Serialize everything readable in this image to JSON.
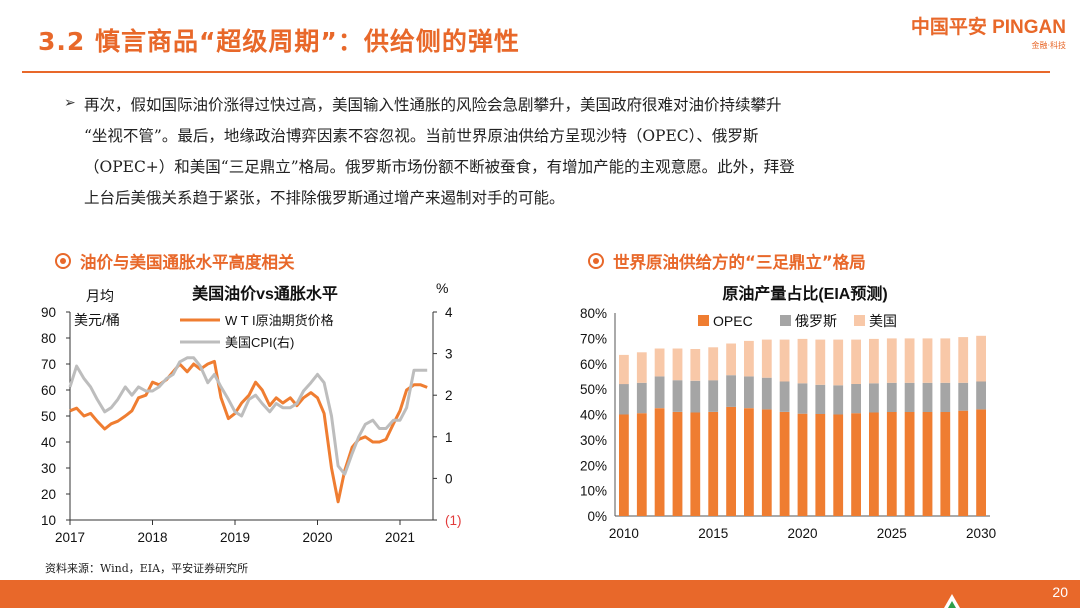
{
  "header": {
    "title": "3.2 慎言商品“超级周期”：供给侧的弹性",
    "logo_main": "中国平安 PINGAN",
    "logo_sub": "金融·科技"
  },
  "bullet": {
    "lines": [
      "再次，假如国际油价涨得过快过高，美国输入性通胀的风险会急剧攀升，美国政府很难对油价持续攀升",
      "“坐视不管”。最后，地缘政治博弈因素不容忽视。当前世界原油供给方呈现沙特（OPEC）、俄罗斯",
      "（OPEC+）和美国“三足鼎立”格局。俄罗斯市场份额不断被蚕食，有增加产能的主观意愿。此外，拜登",
      "上台后美俄关系趋于紧张，不排除俄罗斯通过增产来遏制对手的可能。"
    ]
  },
  "left_section": {
    "heading": "油价与美国通胀水平高度相关"
  },
  "right_section": {
    "heading": "世界原油供给方的“三足鼎立”格局"
  },
  "footer": {
    "source": "资料来源：Wind，EIA，平安证券研究所",
    "page": "20"
  },
  "colors": {
    "accent": "#e8682a",
    "opec": "#ef7d31",
    "russia": "#a5a5a5",
    "us": "#f8c8a8",
    "cpi": "#bdbdbd"
  },
  "chart_data": [
    {
      "type": "line",
      "title": "美国油价vs通胀水平",
      "ylabel_left_1": "月均",
      "ylabel_left_2": "美元/桶",
      "ylabel_right": "%",
      "x_ticks": [
        "2017",
        "2018",
        "2019",
        "2020",
        "2021"
      ],
      "y_left_ticks": [
        "90",
        "80",
        "70",
        "60",
        "50",
        "40",
        "30",
        "20",
        "10"
      ],
      "y_right_ticks": [
        "4",
        "3",
        "2",
        "1",
        "0",
        "(1)"
      ],
      "ylim_left": [
        10,
        90
      ],
      "ylim_right": [
        -1,
        4
      ],
      "xlim": [
        2017.0,
        2021.4
      ],
      "series": [
        {
          "name": "W T I原油期货价格",
          "axis": "left",
          "x": [
            2017.0,
            2017.08,
            2017.17,
            2017.25,
            2017.33,
            2017.42,
            2017.5,
            2017.58,
            2017.67,
            2017.75,
            2017.83,
            2017.92,
            2018.0,
            2018.08,
            2018.17,
            2018.25,
            2018.33,
            2018.42,
            2018.5,
            2018.58,
            2018.67,
            2018.75,
            2018.83,
            2018.92,
            2019.0,
            2019.08,
            2019.17,
            2019.25,
            2019.33,
            2019.42,
            2019.5,
            2019.58,
            2019.67,
            2019.75,
            2019.83,
            2019.92,
            2020.0,
            2020.08,
            2020.17,
            2020.25,
            2020.33,
            2020.42,
            2020.5,
            2020.58,
            2020.67,
            2020.75,
            2020.83,
            2020.92,
            2021.0,
            2021.08,
            2021.17,
            2021.25,
            2021.33
          ],
          "values": [
            52,
            53,
            50,
            51,
            48,
            45,
            47,
            48,
            50,
            52,
            57,
            58,
            63,
            62,
            64,
            67,
            70,
            67,
            70,
            68,
            70,
            71,
            57,
            49,
            51,
            55,
            58,
            63,
            60,
            54,
            57,
            55,
            57,
            54,
            57,
            59,
            57,
            51,
            30,
            17,
            29,
            38,
            41,
            42,
            40,
            40,
            41,
            47,
            52,
            60,
            62,
            62,
            61
          ]
        },
        {
          "name": "美国CPI(右)",
          "axis": "right",
          "x": [
            2017.0,
            2017.08,
            2017.17,
            2017.25,
            2017.33,
            2017.42,
            2017.5,
            2017.58,
            2017.67,
            2017.75,
            2017.83,
            2017.92,
            2018.0,
            2018.08,
            2018.17,
            2018.25,
            2018.33,
            2018.42,
            2018.5,
            2018.58,
            2018.67,
            2018.75,
            2018.83,
            2018.92,
            2019.0,
            2019.08,
            2019.17,
            2019.25,
            2019.33,
            2019.42,
            2019.5,
            2019.58,
            2019.67,
            2019.75,
            2019.83,
            2019.92,
            2020.0,
            2020.08,
            2020.17,
            2020.25,
            2020.33,
            2020.42,
            2020.5,
            2020.58,
            2020.67,
            2020.75,
            2020.83,
            2020.92,
            2021.0,
            2021.08,
            2021.17,
            2021.25,
            2021.33
          ],
          "values": [
            2.2,
            2.7,
            2.4,
            2.2,
            1.9,
            1.6,
            1.7,
            1.9,
            2.2,
            2.0,
            2.2,
            2.1,
            2.1,
            2.2,
            2.4,
            2.5,
            2.8,
            2.9,
            2.9,
            2.7,
            2.3,
            2.5,
            2.2,
            1.9,
            1.6,
            1.5,
            1.9,
            2.0,
            1.8,
            1.6,
            1.8,
            1.7,
            1.7,
            1.8,
            2.1,
            2.3,
            2.5,
            2.3,
            1.5,
            0.3,
            0.1,
            0.6,
            1.0,
            1.3,
            1.4,
            1.2,
            1.2,
            1.4,
            1.4,
            1.7,
            2.6,
            2.6,
            2.6
          ]
        }
      ]
    },
    {
      "type": "bar",
      "stacked": true,
      "title": "原油产量占比(EIA预测)",
      "categories": [
        "2010",
        "2011",
        "2012",
        "2013",
        "2014",
        "2015",
        "2016",
        "2017",
        "2018",
        "2019",
        "2020",
        "2021",
        "2022",
        "2023",
        "2024",
        "2025",
        "2026",
        "2027",
        "2028",
        "2029",
        "2030"
      ],
      "x_tick_labels": [
        "2010",
        "2015",
        "2020",
        "2025",
        "2030"
      ],
      "y_ticks": [
        "80%",
        "70%",
        "60%",
        "50%",
        "40%",
        "30%",
        "20%",
        "10%",
        "0%"
      ],
      "ylim": [
        0,
        80
      ],
      "series": [
        {
          "name": "OPEC",
          "values": [
            40.0,
            40.5,
            42.5,
            41.0,
            40.8,
            41.0,
            43.0,
            42.5,
            42.0,
            41.0,
            40.3,
            40.2,
            40.0,
            40.5,
            40.8,
            41.0,
            41.0,
            41.0,
            41.0,
            41.5,
            42.0
          ]
        },
        {
          "name": "俄罗斯",
          "values": [
            12.0,
            12.0,
            12.5,
            12.5,
            12.5,
            12.5,
            12.5,
            12.5,
            12.5,
            12.0,
            12.0,
            11.5,
            11.5,
            11.5,
            11.5,
            11.5,
            11.5,
            11.5,
            11.5,
            11.0,
            11.0
          ]
        },
        {
          "name": "美国",
          "values": [
            11.5,
            12.0,
            11.0,
            12.5,
            12.5,
            13.0,
            12.5,
            14.0,
            15.0,
            16.5,
            17.5,
            17.8,
            18.0,
            17.5,
            17.5,
            17.5,
            17.5,
            17.5,
            17.5,
            18.0,
            18.0
          ]
        }
      ]
    }
  ]
}
